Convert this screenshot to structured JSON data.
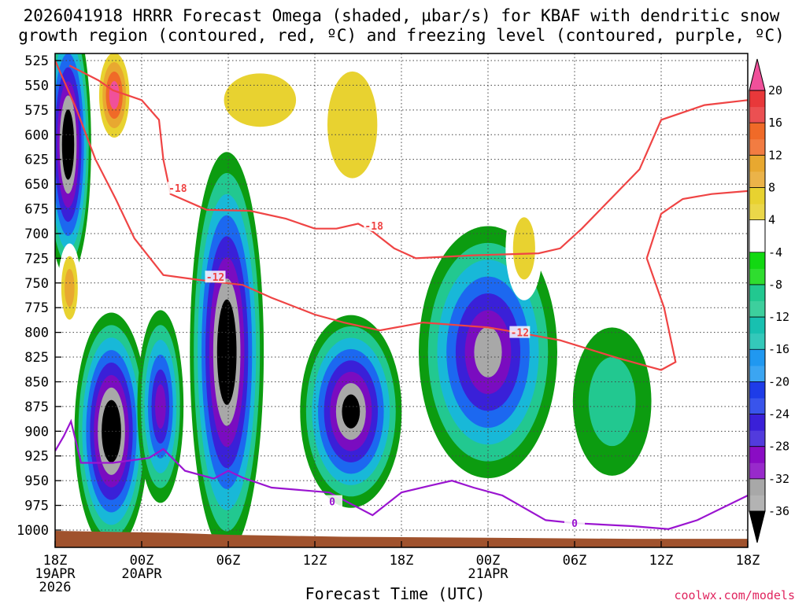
{
  "title_line1": "2026041918 HRRR Forecast Omega (shaded, µbar/s) for KBAF with dendritic snow",
  "title_line2": "growth region (contoured, red, ºC) and freezing level (contoured, purple, ºC)",
  "xlabel": "Forecast Time (UTC)",
  "credit": "coolwx.com/models",
  "chart_data": {
    "type": "heatmap",
    "title": "2026041918 HRRR Forecast Omega (shaded, µbar/s) for KBAF with dendritic snow growth region (contoured, red, ºC) and freezing level (contoured, purple, ºC)",
    "xlabel": "Forecast Time (UTC)",
    "ylabel": "",
    "y_axis": {
      "levels_hPa": [
        525,
        550,
        575,
        600,
        625,
        650,
        675,
        700,
        725,
        750,
        775,
        800,
        825,
        850,
        875,
        900,
        925,
        950,
        975,
        1000
      ],
      "inverted": true
    },
    "x_axis": {
      "range_hours": [
        0,
        48
      ],
      "ticks": [
        {
          "hour": 0,
          "lines": [
            "18Z",
            "19APR",
            "2026"
          ]
        },
        {
          "hour": 6,
          "lines": [
            "00Z",
            "20APR"
          ]
        },
        {
          "hour": 12,
          "lines": [
            "06Z"
          ]
        },
        {
          "hour": 18,
          "lines": [
            "12Z"
          ]
        },
        {
          "hour": 24,
          "lines": [
            "18Z"
          ]
        },
        {
          "hour": 30,
          "lines": [
            "00Z",
            "21APR"
          ]
        },
        {
          "hour": 36,
          "lines": [
            "06Z"
          ]
        },
        {
          "hour": 42,
          "lines": [
            "12Z"
          ]
        },
        {
          "hour": 48,
          "lines": [
            "18Z"
          ]
        }
      ]
    },
    "grid": true,
    "colorbar": {
      "labels": [
        "20",
        "16",
        "12",
        "8",
        "4",
        "-4",
        "-8",
        "-12",
        "-16",
        "-20",
        "-24",
        "-28",
        "-32",
        "-36"
      ],
      "bins": [
        {
          "value": 20,
          "color": "#f0509a"
        },
        {
          "value": 18,
          "color": "#e8383a"
        },
        {
          "value": 16,
          "color": "#f06a28"
        },
        {
          "value": 14,
          "color": "#e89028"
        },
        {
          "value": 12,
          "color": "#e8a830"
        },
        {
          "value": 10,
          "color": "#e8be2e"
        },
        {
          "value": 8,
          "color": "#e8d230"
        },
        {
          "value": 6,
          "color": "#ece040"
        },
        {
          "value": 4,
          "color": "#ffffff"
        },
        {
          "value": -4,
          "color": "#0c9c10"
        },
        {
          "value": -6,
          "color": "#12d812"
        },
        {
          "value": -8,
          "color": "#22c890"
        },
        {
          "value": -10,
          "color": "#18c0b0"
        },
        {
          "value": -12,
          "color": "#18b8d8"
        },
        {
          "value": -14,
          "color": "#2098f0"
        },
        {
          "value": -16,
          "color": "#1c68f0"
        },
        {
          "value": -18,
          "color": "#1e3ce8"
        },
        {
          "value": -20,
          "color": "#3a20d8"
        },
        {
          "value": -22,
          "color": "#5a14c8"
        },
        {
          "value": -24,
          "color": "#7a0cc0"
        },
        {
          "value": -26,
          "color": "#9a0cc8"
        },
        {
          "value": -28,
          "color": "#a8a8a8"
        },
        {
          "value": -32,
          "color": "#000000"
        }
      ]
    },
    "omega_cells": [
      {
        "hour": 0.9,
        "hPa": 610,
        "dh": 1.0,
        "dp": 180,
        "omega": -36
      },
      {
        "hour": 3.9,
        "hPa": 900,
        "dh": 1.6,
        "dp": 160,
        "omega": -36
      },
      {
        "hour": 11.9,
        "hPa": 820,
        "dh": 1.6,
        "dp": 270,
        "omega": -36
      },
      {
        "hour": 20.5,
        "hPa": 880,
        "dh": 2.2,
        "dp": 130,
        "omega": -32
      },
      {
        "hour": 30.0,
        "hPa": 820,
        "dh": 3.0,
        "dp": 170,
        "omega": -28
      },
      {
        "hour": 7.3,
        "hPa": 875,
        "dh": 1.0,
        "dp": 130,
        "omega": -26
      },
      {
        "hour": 4.1,
        "hPa": 560,
        "dh": 0.8,
        "dp": 70,
        "omega": 20
      },
      {
        "hour": 14.2,
        "hPa": 565,
        "dh": 2.6,
        "dp": 60,
        "omega": 10
      },
      {
        "hour": 20.6,
        "hPa": 590,
        "dh": 1.8,
        "dp": 120,
        "omega": 10
      },
      {
        "hour": 32.5,
        "hPa": 715,
        "dh": 0.8,
        "dp": 70,
        "omega": 10
      },
      {
        "hour": 1.0,
        "hPa": 755,
        "dh": 0.5,
        "dp": 60,
        "omega": 12
      },
      {
        "hour": 38.6,
        "hPa": 870,
        "dh": 1.7,
        "dp": 100,
        "omega": -8
      }
    ],
    "dendritic_contours": [
      {
        "level": -18,
        "color": "#ef4444",
        "points": [
          [
            1.0,
            530
          ],
          [
            3.0,
            545
          ],
          [
            4.0,
            555
          ],
          [
            6.0,
            565
          ],
          [
            7.2,
            585
          ],
          [
            7.5,
            625
          ],
          [
            8.0,
            660
          ],
          [
            10.5,
            676
          ],
          [
            13.5,
            677
          ],
          [
            16.0,
            685
          ],
          [
            18.0,
            695
          ],
          [
            19.5,
            695
          ],
          [
            21.0,
            690
          ],
          [
            22.0,
            698
          ],
          [
            23.5,
            715
          ],
          [
            25.0,
            725
          ],
          [
            29.0,
            722
          ],
          [
            33.5,
            720
          ],
          [
            35.0,
            715
          ],
          [
            36.5,
            695
          ],
          [
            38.5,
            665
          ],
          [
            40.5,
            635
          ],
          [
            42.0,
            585
          ],
          [
            45.0,
            570
          ],
          [
            48.0,
            565
          ]
        ]
      },
      {
        "level": -12,
        "color": "#ef4444",
        "points": [
          [
            0.0,
            525
          ],
          [
            0.6,
            545
          ],
          [
            1.5,
            575
          ],
          [
            2.8,
            625
          ],
          [
            4.2,
            665
          ],
          [
            5.5,
            705
          ],
          [
            7.5,
            742
          ],
          [
            10.0,
            747
          ],
          [
            13.0,
            752
          ],
          [
            15.0,
            765
          ],
          [
            18.0,
            782
          ],
          [
            20.0,
            790
          ],
          [
            22.5,
            798
          ],
          [
            25.5,
            790
          ],
          [
            30.0,
            795
          ],
          [
            32.0,
            800
          ],
          [
            35.0,
            808
          ],
          [
            39.0,
            826
          ],
          [
            42.0,
            838
          ],
          [
            43.0,
            830
          ],
          [
            42.2,
            775
          ],
          [
            41.0,
            725
          ],
          [
            42.0,
            680
          ],
          [
            43.5,
            665
          ],
          [
            45.5,
            660
          ],
          [
            48.0,
            657
          ]
        ]
      },
      {
        "level": 0,
        "color": "#9a14d0",
        "points": [
          [
            0.0,
            920
          ],
          [
            0.6,
            905
          ],
          [
            1.1,
            890
          ],
          [
            1.8,
            932
          ],
          [
            4.0,
            932
          ],
          [
            6.5,
            927
          ],
          [
            7.5,
            918
          ],
          [
            9.0,
            940
          ],
          [
            11.0,
            948
          ],
          [
            12.0,
            940
          ],
          [
            13.0,
            947
          ],
          [
            15.0,
            957
          ],
          [
            19.0,
            962
          ],
          [
            22.0,
            985
          ],
          [
            24.0,
            962
          ],
          [
            26.0,
            955
          ],
          [
            27.5,
            950
          ],
          [
            29.0,
            957
          ],
          [
            31.0,
            965
          ],
          [
            34.0,
            990
          ],
          [
            36.0,
            993
          ],
          [
            40.0,
            996
          ],
          [
            42.5,
            999
          ],
          [
            44.5,
            990
          ],
          [
            48.0,
            965
          ]
        ]
      }
    ],
    "contour_labels": [
      {
        "text": "-18",
        "color": "#ef4444",
        "hour": 8.5,
        "hPa": 654
      },
      {
        "text": "-18",
        "color": "#ef4444",
        "hour": 22.1,
        "hPa": 692
      },
      {
        "text": "-12",
        "color": "#ef4444",
        "hour": 11.1,
        "hPa": 744
      },
      {
        "text": "-12",
        "color": "#ef4444",
        "hour": 32.2,
        "hPa": 800
      },
      {
        "text": "0",
        "color": "#9a14d0",
        "hour": 19.2,
        "hPa": 971
      },
      {
        "text": "0",
        "color": "#9a14d0",
        "hour": 36.0,
        "hPa": 993
      }
    ],
    "terrain_color": "#a0522d"
  }
}
